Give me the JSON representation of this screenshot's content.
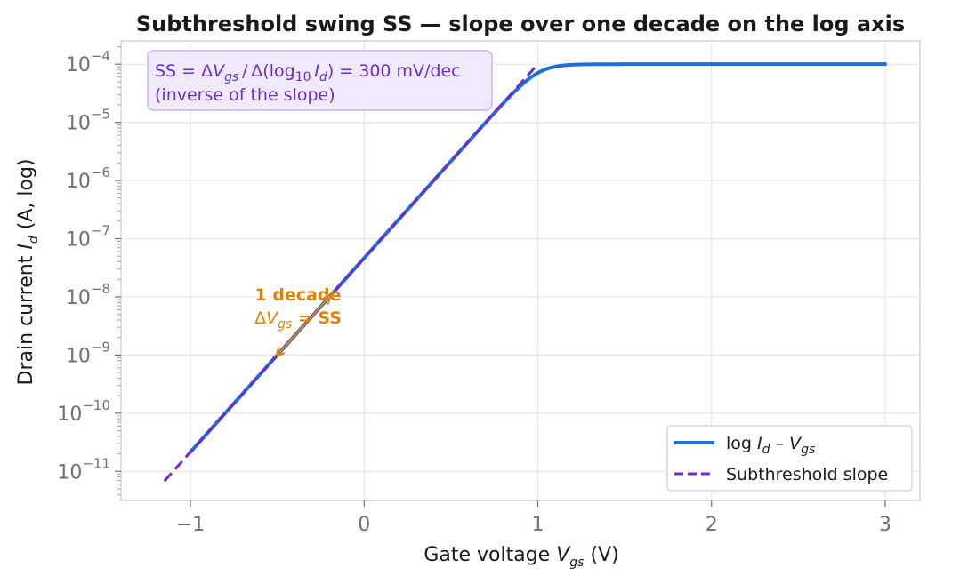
{
  "chart_data": {
    "type": "line",
    "title": "Subthreshold swing SS — slope over one decade on the log axis",
    "xlabel": "Gate voltage  V_gs  (V)",
    "ylabel": "Drain current  I_d  (A, log)",
    "xlabel_parts": {
      "pre": "Gate voltage  ",
      "var": "V",
      "sub": "gs",
      "post": "  (V)"
    },
    "ylabel_parts": {
      "pre": "Drain current  ",
      "var": "I",
      "sub": "d",
      "post": "  (A, log)"
    },
    "xlim": [
      -1.4,
      3.2
    ],
    "ylim_log10": [
      -11.5,
      -3.6
    ],
    "y_scale": "log",
    "grid": true,
    "x_ticks": [
      {
        "value": -1,
        "label": "−1"
      },
      {
        "value": 0,
        "label": "0"
      },
      {
        "value": 1,
        "label": "1"
      },
      {
        "value": 2,
        "label": "2"
      },
      {
        "value": 3,
        "label": "3"
      }
    ],
    "y_ticks": [
      {
        "value": -11,
        "base": "10",
        "exp": "−11"
      },
      {
        "value": -10,
        "base": "10",
        "exp": "−10"
      },
      {
        "value": -9,
        "base": "10",
        "exp": "−9"
      },
      {
        "value": -8,
        "base": "10",
        "exp": "−8"
      },
      {
        "value": -7,
        "base": "10",
        "exp": "−7"
      },
      {
        "value": -6,
        "base": "10",
        "exp": "−6"
      },
      {
        "value": -5,
        "base": "10",
        "exp": "−5"
      },
      {
        "value": -4,
        "base": "10",
        "exp": "−4"
      }
    ],
    "series": [
      {
        "name": "log I_d – V_gs",
        "color": "#1f6fd6",
        "style": "solid",
        "model": {
          "swing_v_per_dec": 0.3,
          "y_at_zero_log10": -7.3333,
          "y_sat_log10": -4.0
        },
        "x_range": [
          -1.0,
          3.0
        ]
      },
      {
        "name": "Subthreshold slope",
        "color": "#6b2fcf",
        "style": "dashed",
        "x": [
          -1.15,
          1.0
        ],
        "y_log10": [
          -11.1667,
          -4.0
        ]
      }
    ],
    "legend": {
      "position": "bottom-right",
      "items": [
        {
          "pre": "log ",
          "var": "I",
          "sub": "d",
          "post": " – ",
          "var2": "V",
          "sub2": "gs"
        },
        {
          "pre": "Subthreshold slope"
        }
      ]
    },
    "annotation_box": {
      "line1_parts": [
        "SS = Δ",
        "V",
        "gs",
        " / Δ(log",
        "10",
        " ",
        "I",
        "d",
        ") = 300 mV/dec"
      ],
      "line2": "(inverse of the slope)",
      "color": "#6b2fcf",
      "fill": "#f1eafc"
    },
    "annotation_decade": {
      "line1": "1 decade",
      "line2_parts": [
        "Δ",
        "V",
        "gs",
        " = SS"
      ],
      "from": {
        "x": -0.5,
        "y_log10": -9.0
      },
      "to": {
        "x": -0.2,
        "y_log10": -8.0
      },
      "color": "#d9860e"
    }
  }
}
